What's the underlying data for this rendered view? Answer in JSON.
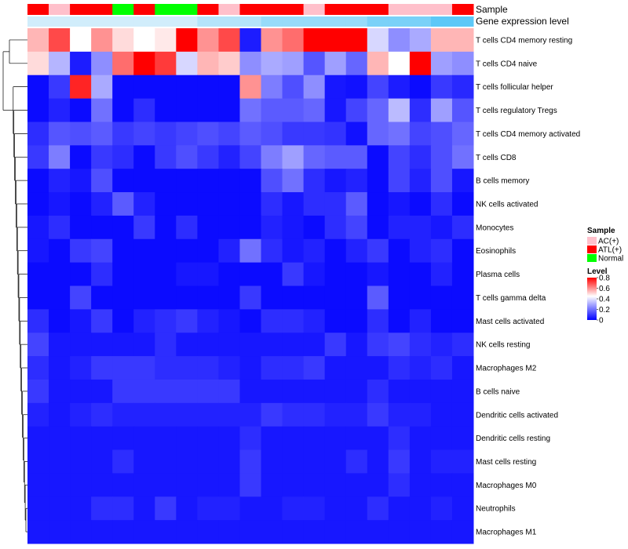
{
  "chart_data": {
    "type": "heatmap",
    "title": "",
    "annotations": {
      "sample_label": "Sample",
      "expression_label": "Gene expression level",
      "sample_classes": [
        "ATL(+)",
        "AC(+)",
        "ATL(+)",
        "ATL(+)",
        "Normal",
        "ATL(+)",
        "Normal",
        "Normal",
        "ATL(+)",
        "AC(+)",
        "ATL(+)",
        "ATL(+)",
        "ATL(+)",
        "AC(+)",
        "ATL(+)",
        "ATL(+)",
        "ATL(+)",
        "AC(+)",
        "AC(+)",
        "AC(+)",
        "ATL(+)"
      ],
      "expression_levels": [
        0.05,
        0.05,
        0.05,
        0.05,
        0.05,
        0.05,
        0.05,
        0.05,
        0.15,
        0.15,
        0.15,
        0.25,
        0.25,
        0.25,
        0.25,
        0.25,
        0.35,
        0.35,
        0.35,
        0.45,
        0.45
      ]
    },
    "rows": [
      "T cells CD4 memory resting",
      "T cells CD4 naive",
      "T cells follicular helper",
      "T cells regulatory  Tregs",
      "T cells CD4 memory activated",
      "T cells CD8",
      "B cells memory",
      "NK cells activated",
      "Monocytes",
      "Eosinophils",
      "Plasma cells",
      "T cells gamma delta",
      "Mast cells activated",
      "NK cells resting",
      "Macrophages M2",
      "B cells naive",
      "Dendritic cells activated",
      "Dendritic cells resting",
      "Mast cells resting",
      "Macrophages M0",
      "Neutrophils",
      "Macrophages M1"
    ],
    "values": [
      [
        0.55,
        0.7,
        0.45,
        0.6,
        0.5,
        0.45,
        0.48,
        0.8,
        0.6,
        0.7,
        0.05,
        0.6,
        0.65,
        0.8,
        0.8,
        0.8,
        0.38,
        0.25,
        0.3,
        0.55,
        0.55
      ],
      [
        0.5,
        0.32,
        0.05,
        0.25,
        0.65,
        0.8,
        0.72,
        0.38,
        0.55,
        0.52,
        0.25,
        0.3,
        0.28,
        0.15,
        0.28,
        0.18,
        0.55,
        0.45,
        0.8,
        0.28,
        0.25
      ],
      [
        0.02,
        0.1,
        0.75,
        0.3,
        0.02,
        0.02,
        0.02,
        0.02,
        0.02,
        0.02,
        0.6,
        0.22,
        0.14,
        0.25,
        0.04,
        0.03,
        0.12,
        0.05,
        0.02,
        0.1,
        0.07
      ],
      [
        0.02,
        0.06,
        0.02,
        0.2,
        0.02,
        0.08,
        0.02,
        0.02,
        0.02,
        0.02,
        0.2,
        0.16,
        0.16,
        0.18,
        0.04,
        0.12,
        0.18,
        0.33,
        0.08,
        0.28,
        0.15
      ],
      [
        0.08,
        0.15,
        0.14,
        0.16,
        0.1,
        0.12,
        0.1,
        0.12,
        0.14,
        0.12,
        0.16,
        0.14,
        0.1,
        0.1,
        0.09,
        0.03,
        0.18,
        0.2,
        0.12,
        0.14,
        0.18
      ],
      [
        0.1,
        0.22,
        0.02,
        0.1,
        0.08,
        0.02,
        0.1,
        0.14,
        0.1,
        0.06,
        0.12,
        0.22,
        0.28,
        0.18,
        0.16,
        0.16,
        0.02,
        0.12,
        0.08,
        0.14,
        0.2
      ],
      [
        0.02,
        0.06,
        0.04,
        0.14,
        0.02,
        0.02,
        0.02,
        0.02,
        0.02,
        0.02,
        0.02,
        0.14,
        0.2,
        0.08,
        0.04,
        0.06,
        0.02,
        0.12,
        0.06,
        0.14,
        0.04
      ],
      [
        0.02,
        0.04,
        0.02,
        0.06,
        0.16,
        0.06,
        0.02,
        0.02,
        0.02,
        0.02,
        0.02,
        0.08,
        0.04,
        0.08,
        0.08,
        0.16,
        0.02,
        0.04,
        0.02,
        0.08,
        0.02
      ],
      [
        0.04,
        0.08,
        0.02,
        0.02,
        0.02,
        0.1,
        0.02,
        0.08,
        0.02,
        0.02,
        0.02,
        0.06,
        0.04,
        0.02,
        0.08,
        0.12,
        0.02,
        0.06,
        0.06,
        0.04,
        0.08
      ],
      [
        0.04,
        0.02,
        0.1,
        0.12,
        0.02,
        0.02,
        0.02,
        0.02,
        0.02,
        0.06,
        0.2,
        0.08,
        0.04,
        0.06,
        0.02,
        0.06,
        0.1,
        0.02,
        0.06,
        0.08,
        0.02
      ],
      [
        0.02,
        0.02,
        0.02,
        0.08,
        0.02,
        0.02,
        0.02,
        0.04,
        0.04,
        0.02,
        0.02,
        0.02,
        0.1,
        0.04,
        0.02,
        0.02,
        0.04,
        0.02,
        0.02,
        0.06,
        0.02
      ],
      [
        0.02,
        0.02,
        0.12,
        0.02,
        0.02,
        0.02,
        0.02,
        0.02,
        0.02,
        0.02,
        0.1,
        0.02,
        0.02,
        0.02,
        0.02,
        0.02,
        0.16,
        0.02,
        0.02,
        0.02,
        0.02
      ],
      [
        0.08,
        0.02,
        0.04,
        0.1,
        0.02,
        0.06,
        0.08,
        0.1,
        0.06,
        0.04,
        0.02,
        0.08,
        0.08,
        0.06,
        0.02,
        0.02,
        0.08,
        0.02,
        0.06,
        0.02,
        0.02
      ],
      [
        0.12,
        0.04,
        0.04,
        0.04,
        0.04,
        0.04,
        0.08,
        0.04,
        0.04,
        0.04,
        0.04,
        0.04,
        0.04,
        0.04,
        0.1,
        0.04,
        0.1,
        0.12,
        0.08,
        0.06,
        0.08
      ],
      [
        0.08,
        0.04,
        0.06,
        0.1,
        0.1,
        0.1,
        0.08,
        0.08,
        0.08,
        0.06,
        0.04,
        0.08,
        0.08,
        0.1,
        0.04,
        0.04,
        0.04,
        0.08,
        0.06,
        0.08,
        0.04
      ],
      [
        0.1,
        0.04,
        0.04,
        0.04,
        0.1,
        0.1,
        0.1,
        0.1,
        0.1,
        0.1,
        0.04,
        0.04,
        0.04,
        0.04,
        0.04,
        0.04,
        0.08,
        0.04,
        0.04,
        0.04,
        0.04
      ],
      [
        0.06,
        0.04,
        0.06,
        0.08,
        0.06,
        0.06,
        0.06,
        0.06,
        0.06,
        0.06,
        0.06,
        0.1,
        0.08,
        0.08,
        0.06,
        0.06,
        0.1,
        0.06,
        0.06,
        0.04,
        0.04
      ],
      [
        0.04,
        0.04,
        0.04,
        0.04,
        0.04,
        0.04,
        0.04,
        0.04,
        0.04,
        0.04,
        0.08,
        0.04,
        0.04,
        0.04,
        0.04,
        0.04,
        0.04,
        0.08,
        0.04,
        0.04,
        0.04
      ],
      [
        0.04,
        0.04,
        0.04,
        0.04,
        0.08,
        0.04,
        0.04,
        0.04,
        0.04,
        0.04,
        0.1,
        0.04,
        0.04,
        0.04,
        0.04,
        0.08,
        0.04,
        0.1,
        0.04,
        0.06,
        0.06
      ],
      [
        0.04,
        0.04,
        0.04,
        0.04,
        0.04,
        0.04,
        0.04,
        0.04,
        0.04,
        0.04,
        0.1,
        0.04,
        0.04,
        0.04,
        0.04,
        0.04,
        0.04,
        0.08,
        0.04,
        0.04,
        0.04
      ],
      [
        0.04,
        0.04,
        0.04,
        0.08,
        0.08,
        0.04,
        0.1,
        0.04,
        0.06,
        0.06,
        0.04,
        0.04,
        0.06,
        0.06,
        0.04,
        0.04,
        0.08,
        0.04,
        0.04,
        0.06,
        0.04
      ],
      [
        0.04,
        0.04,
        0.04,
        0.04,
        0.04,
        0.04,
        0.04,
        0.04,
        0.04,
        0.04,
        0.04,
        0.04,
        0.04,
        0.04,
        0.04,
        0.04,
        0.04,
        0.04,
        0.04,
        0.04,
        0.04
      ]
    ],
    "color_scale": {
      "min": 0,
      "max": 0.8,
      "low_color": "#0000ff",
      "mid_color": "#ffffff",
      "high_color": "#ff0000",
      "mid_value": 0.45
    },
    "legend": {
      "sample_title": "Sample",
      "sample_entries": [
        {
          "label": "AC(+)",
          "color": "#ffc0cb"
        },
        {
          "label": "ATL(+)",
          "color": "#ff0000"
        },
        {
          "label": "Normal",
          "color": "#00ff00"
        }
      ],
      "level_title": "Level",
      "level_ticks": [
        0.8,
        0.6,
        0.4,
        0.2,
        0
      ],
      "placement": "right"
    },
    "expression_colors": {
      "low": "#dff2fb",
      "high": "#4fc3f7"
    }
  }
}
